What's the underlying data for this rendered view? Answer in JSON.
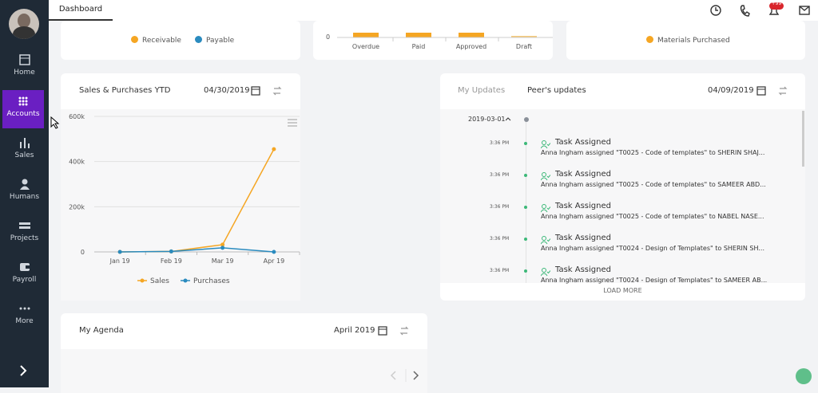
{
  "header": {
    "tab": "Dashboard",
    "badge": "+99"
  },
  "sidebar": {
    "items": [
      "Home",
      "Accounts",
      "Sales",
      "Humans",
      "Projects",
      "Payroll",
      "More"
    ]
  },
  "receivables_card": {
    "legend": [
      "Receivable",
      "Payable"
    ]
  },
  "bills_card": {
    "axis_label": "0",
    "categories": [
      "Overdue",
      "Paid",
      "Approved",
      "Draft"
    ]
  },
  "materials_card": {
    "legend": "Materials Purchased"
  },
  "sales_card": {
    "title": "Sales & Purchases YTD",
    "date": "04/30/2019"
  },
  "chart_data": {
    "type": "line",
    "categories": [
      "Jan 19",
      "Feb 19",
      "Mar 19",
      "Apr 19"
    ],
    "series": [
      {
        "name": "Sales",
        "color": "#f5a623",
        "values": [
          0,
          2000,
          32000,
          455000
        ]
      },
      {
        "name": "Purchases",
        "color": "#2a8bbf",
        "values": [
          0,
          2000,
          18000,
          0
        ]
      }
    ],
    "ylim": [
      0,
      600000
    ],
    "yticks": [
      0,
      {
        "value": 200000,
        "label": "200k"
      },
      {
        "value": 400000,
        "label": "400k"
      },
      {
        "value": 600000,
        "label": "600k"
      }
    ],
    "grid": true
  },
  "updates_card": {
    "tabs": [
      "My Updates",
      "Peer's updates"
    ],
    "date": "04/09/2019",
    "group_date": "2019-03-01",
    "items": [
      {
        "time": "3:36 PM",
        "title": "Task Assigned",
        "text": "Anna Ingham assigned \"T0025 - Code of templates\" to SHERIN SHAJ..."
      },
      {
        "time": "3:36 PM",
        "title": "Task Assigned",
        "text": "Anna Ingham assigned \"T0025 - Code of templates\" to SAMEER ABD..."
      },
      {
        "time": "3:36 PM",
        "title": "Task Assigned",
        "text": "Anna Ingham assigned \"T0025 - Code of templates\" to NABEL NASE..."
      },
      {
        "time": "3:36 PM",
        "title": "Task Assigned",
        "text": "Anna Ingham assigned \"T0024 - Design of Templates\" to SHERIN SH..."
      },
      {
        "time": "3:36 PM",
        "title": "Task Assigned",
        "text": "Anna Ingham assigned \"T0024 - Design of Templates\" to SAMEER AB..."
      }
    ],
    "load_more": "LOAD MORE"
  },
  "agenda_card": {
    "title": "My Agenda",
    "date": "April 2019"
  }
}
